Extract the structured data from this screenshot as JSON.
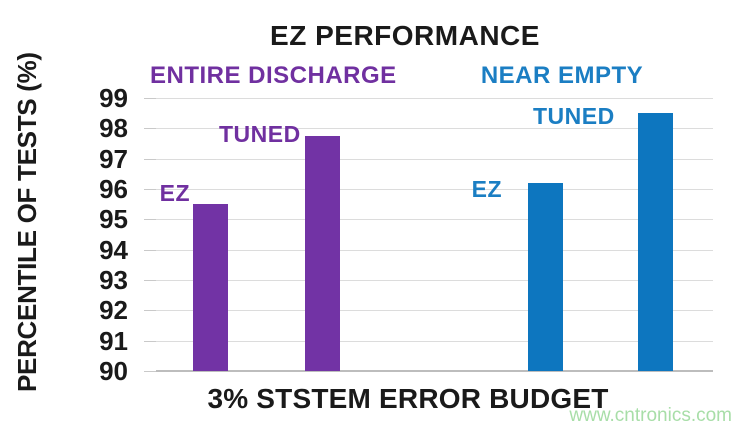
{
  "watermark": "www.cntronics.com",
  "colors": {
    "title_text": "#1a1a1a",
    "tick_text": "#1a1a1a",
    "gridline": "#dcdcdc",
    "axis_baseline": "#bdbdbd",
    "watermark_green": "#a8dea8",
    "entire_discharge_purple": "#7233a5",
    "near_empty_blue": "#0d76bf"
  },
  "chart_data": {
    "type": "bar",
    "title": "EZ PERFORMANCE",
    "xlabel": "3% STSTEM ERROR BUDGET",
    "ylabel": "PERCENTILE OF TESTS (%)",
    "ylim": [
      90,
      99
    ],
    "yticks": [
      99,
      98,
      97,
      96,
      95,
      94,
      93,
      92,
      91,
      90
    ],
    "grid": true,
    "legend_position": "none",
    "groups": [
      {
        "name": "ENTIRE DISCHARGE",
        "color": "#7233a5",
        "label_color": "#7030a0",
        "bars": [
          {
            "label": "EZ",
            "value": 95.5
          },
          {
            "label": "TUNED",
            "value": 97.75
          }
        ]
      },
      {
        "name": "NEAR EMPTY",
        "color": "#0d76bf",
        "label_color": "#1b7ec3",
        "bars": [
          {
            "label": "EZ",
            "value": 96.2
          },
          {
            "label": "TUNED",
            "value": 98.5
          }
        ]
      }
    ]
  }
}
